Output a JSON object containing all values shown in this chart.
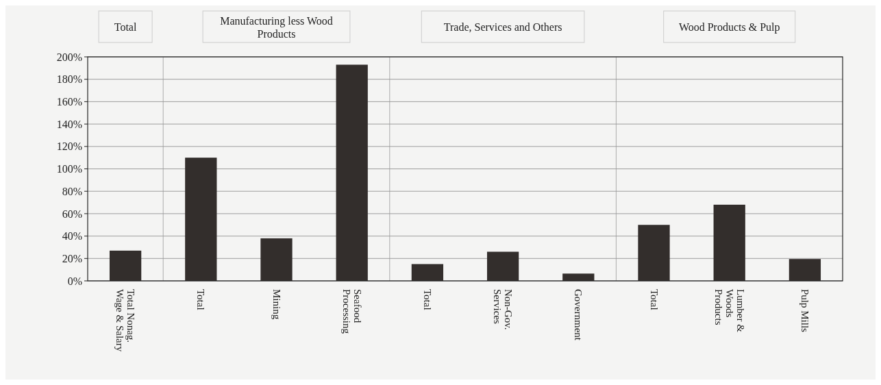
{
  "chart_data": {
    "type": "bar",
    "categories": [
      "Total Nonag. Wage & Salary",
      "Total",
      "Mining",
      "Seafood Processing",
      "Total",
      "Non-Gov. Services",
      "Government",
      "Total",
      "Lumber & Woods Products",
      "Pulp Mills"
    ],
    "values": [
      27,
      110,
      38,
      193,
      15,
      26,
      6.5,
      50,
      68,
      19.5
    ],
    "color": "#332e2c",
    "ylim": [
      0,
      200
    ],
    "yticks": [
      {
        "value": 0,
        "label": "0%"
      },
      {
        "value": 20,
        "label": "20%"
      },
      {
        "value": 40,
        "label": "40%"
      },
      {
        "value": 60,
        "label": "60%"
      },
      {
        "value": 80,
        "label": "80%"
      },
      {
        "value": 100,
        "label": "100%"
      },
      {
        "value": 120,
        "label": "120%"
      },
      {
        "value": 140,
        "label": "140%"
      },
      {
        "value": 160,
        "label": "160%"
      },
      {
        "value": 180,
        "label": "180%"
      },
      {
        "value": 200,
        "label": "200%"
      }
    ],
    "grid": "y",
    "annotations": [
      "Total",
      "Manufacturing less Wood Products",
      "Trade, Services and Others",
      "Wood Products & Pulp"
    ]
  }
}
